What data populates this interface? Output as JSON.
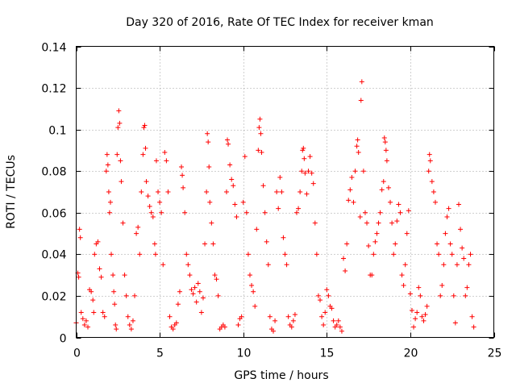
{
  "chart_data": {
    "type": "scatter",
    "title": "Day 320 of 2016, Rate Of TEC Index for receiver kman",
    "xlabel": "GPS time / hours",
    "ylabel": "ROTI / TECUs",
    "xlim": [
      0,
      25
    ],
    "ylim": [
      0,
      0.14
    ],
    "xticks": [
      0,
      5,
      10,
      15,
      20,
      25
    ],
    "yticks": [
      0,
      0.02,
      0.04,
      0.06,
      0.08,
      0.1,
      0.12,
      0.14
    ],
    "xtick_labels": [
      "0",
      "5",
      "10",
      "15",
      "20",
      "25"
    ],
    "ytick_labels": [
      "0",
      "0.02",
      "0.04",
      "0.06",
      "0.08",
      "0.1",
      "0.12",
      "0.14"
    ],
    "grid": true,
    "marker": "+",
    "color": "#ff0000",
    "series": [
      {
        "name": "ROTI",
        "points": [
          [
            0.0,
            0.007
          ],
          [
            0.1,
            0.031
          ],
          [
            0.15,
            0.029
          ],
          [
            0.2,
            0.052
          ],
          [
            0.25,
            0.048
          ],
          [
            0.3,
            0.012
          ],
          [
            0.4,
            0.009
          ],
          [
            0.5,
            0.006
          ],
          [
            0.6,
            0.008
          ],
          [
            0.7,
            0.005
          ],
          [
            0.8,
            0.023
          ],
          [
            0.9,
            0.022
          ],
          [
            1.0,
            0.018
          ],
          [
            1.05,
            0.012
          ],
          [
            1.1,
            0.04
          ],
          [
            1.2,
            0.045
          ],
          [
            1.3,
            0.046
          ],
          [
            1.4,
            0.033
          ],
          [
            1.5,
            0.029
          ],
          [
            1.6,
            0.012
          ],
          [
            1.7,
            0.01
          ],
          [
            1.8,
            0.08
          ],
          [
            1.85,
            0.088
          ],
          [
            1.9,
            0.083
          ],
          [
            1.95,
            0.07
          ],
          [
            2.0,
            0.06
          ],
          [
            2.05,
            0.065
          ],
          [
            2.1,
            0.04
          ],
          [
            2.2,
            0.03
          ],
          [
            2.25,
            0.022
          ],
          [
            2.3,
            0.016
          ],
          [
            2.35,
            0.006
          ],
          [
            2.4,
            0.004
          ],
          [
            2.45,
            0.088
          ],
          [
            2.5,
            0.101
          ],
          [
            2.55,
            0.109
          ],
          [
            2.6,
            0.103
          ],
          [
            2.65,
            0.085
          ],
          [
            2.7,
            0.075
          ],
          [
            2.8,
            0.055
          ],
          [
            2.9,
            0.03
          ],
          [
            3.0,
            0.02
          ],
          [
            3.1,
            0.01
          ],
          [
            3.2,
            0.006
          ],
          [
            3.3,
            0.004
          ],
          [
            3.4,
            0.008
          ],
          [
            3.5,
            0.02
          ],
          [
            3.6,
            0.05
          ],
          [
            3.7,
            0.053
          ],
          [
            3.8,
            0.04
          ],
          [
            3.9,
            0.07
          ],
          [
            4.0,
            0.088
          ],
          [
            4.05,
            0.101
          ],
          [
            4.1,
            0.102
          ],
          [
            4.15,
            0.091
          ],
          [
            4.2,
            0.075
          ],
          [
            4.3,
            0.068
          ],
          [
            4.4,
            0.063
          ],
          [
            4.5,
            0.06
          ],
          [
            4.6,
            0.058
          ],
          [
            4.7,
            0.045
          ],
          [
            4.75,
            0.04
          ],
          [
            4.8,
            0.085
          ],
          [
            4.9,
            0.07
          ],
          [
            5.0,
            0.065
          ],
          [
            5.1,
            0.06
          ],
          [
            5.2,
            0.035
          ],
          [
            5.3,
            0.089
          ],
          [
            5.4,
            0.085
          ],
          [
            5.5,
            0.07
          ],
          [
            5.6,
            0.01
          ],
          [
            5.7,
            0.005
          ],
          [
            5.8,
            0.004
          ],
          [
            5.9,
            0.006
          ],
          [
            6.0,
            0.007
          ],
          [
            6.1,
            0.016
          ],
          [
            6.2,
            0.022
          ],
          [
            6.3,
            0.082
          ],
          [
            6.35,
            0.078
          ],
          [
            6.4,
            0.072
          ],
          [
            6.5,
            0.06
          ],
          [
            6.6,
            0.04
          ],
          [
            6.7,
            0.035
          ],
          [
            6.8,
            0.03
          ],
          [
            6.9,
            0.023
          ],
          [
            7.0,
            0.021
          ],
          [
            7.1,
            0.024
          ],
          [
            7.2,
            0.017
          ],
          [
            7.3,
            0.026
          ],
          [
            7.4,
            0.022
          ],
          [
            7.5,
            0.012
          ],
          [
            7.6,
            0.019
          ],
          [
            7.7,
            0.045
          ],
          [
            7.8,
            0.07
          ],
          [
            7.85,
            0.098
          ],
          [
            7.9,
            0.094
          ],
          [
            7.95,
            0.082
          ],
          [
            8.0,
            0.065
          ],
          [
            8.1,
            0.055
          ],
          [
            8.2,
            0.045
          ],
          [
            8.3,
            0.03
          ],
          [
            8.4,
            0.028
          ],
          [
            8.5,
            0.02
          ],
          [
            8.6,
            0.004
          ],
          [
            8.7,
            0.005
          ],
          [
            8.8,
            0.006
          ],
          [
            8.9,
            0.005
          ],
          [
            9.0,
            0.07
          ],
          [
            9.05,
            0.095
          ],
          [
            9.1,
            0.093
          ],
          [
            9.2,
            0.083
          ],
          [
            9.3,
            0.076
          ],
          [
            9.4,
            0.073
          ],
          [
            9.5,
            0.064
          ],
          [
            9.6,
            0.058
          ],
          [
            9.7,
            0.006
          ],
          [
            9.8,
            0.009
          ],
          [
            9.9,
            0.01
          ],
          [
            10.0,
            0.065
          ],
          [
            10.1,
            0.087
          ],
          [
            10.2,
            0.06
          ],
          [
            10.3,
            0.04
          ],
          [
            10.4,
            0.03
          ],
          [
            10.5,
            0.025
          ],
          [
            10.6,
            0.022
          ],
          [
            10.7,
            0.015
          ],
          [
            10.8,
            0.052
          ],
          [
            10.9,
            0.09
          ],
          [
            10.95,
            0.101
          ],
          [
            11.0,
            0.105
          ],
          [
            11.05,
            0.098
          ],
          [
            11.1,
            0.089
          ],
          [
            11.2,
            0.073
          ],
          [
            11.3,
            0.06
          ],
          [
            11.4,
            0.046
          ],
          [
            11.5,
            0.035
          ],
          [
            11.6,
            0.01
          ],
          [
            11.7,
            0.004
          ],
          [
            11.8,
            0.003
          ],
          [
            11.9,
            0.008
          ],
          [
            12.0,
            0.07
          ],
          [
            12.1,
            0.062
          ],
          [
            12.2,
            0.077
          ],
          [
            12.3,
            0.07
          ],
          [
            12.4,
            0.048
          ],
          [
            12.5,
            0.04
          ],
          [
            12.6,
            0.035
          ],
          [
            12.7,
            0.01
          ],
          [
            12.8,
            0.006
          ],
          [
            12.9,
            0.005
          ],
          [
            13.0,
            0.008
          ],
          [
            13.1,
            0.011
          ],
          [
            13.2,
            0.06
          ],
          [
            13.3,
            0.062
          ],
          [
            13.4,
            0.07
          ],
          [
            13.5,
            0.08
          ],
          [
            13.55,
            0.09
          ],
          [
            13.6,
            0.091
          ],
          [
            13.65,
            0.086
          ],
          [
            13.7,
            0.079
          ],
          [
            13.8,
            0.069
          ],
          [
            13.9,
            0.08
          ],
          [
            14.0,
            0.087
          ],
          [
            14.1,
            0.079
          ],
          [
            14.2,
            0.074
          ],
          [
            14.3,
            0.055
          ],
          [
            14.4,
            0.04
          ],
          [
            14.5,
            0.02
          ],
          [
            14.6,
            0.018
          ],
          [
            14.7,
            0.01
          ],
          [
            14.8,
            0.006
          ],
          [
            14.9,
            0.012
          ],
          [
            15.0,
            0.023
          ],
          [
            15.1,
            0.02
          ],
          [
            15.2,
            0.015
          ],
          [
            15.3,
            0.014
          ],
          [
            15.4,
            0.008
          ],
          [
            15.5,
            0.005
          ],
          [
            15.6,
            0.006
          ],
          [
            15.7,
            0.008
          ],
          [
            15.8,
            0.005
          ],
          [
            15.9,
            0.003
          ],
          [
            16.0,
            0.038
          ],
          [
            16.1,
            0.032
          ],
          [
            16.2,
            0.045
          ],
          [
            16.3,
            0.066
          ],
          [
            16.4,
            0.071
          ],
          [
            16.5,
            0.077
          ],
          [
            16.6,
            0.065
          ],
          [
            16.7,
            0.08
          ],
          [
            16.8,
            0.092
          ],
          [
            16.85,
            0.095
          ],
          [
            16.9,
            0.089
          ],
          [
            17.0,
            0.058
          ],
          [
            17.05,
            0.114
          ],
          [
            17.1,
            0.123
          ],
          [
            17.2,
            0.08
          ],
          [
            17.3,
            0.06
          ],
          [
            17.4,
            0.055
          ],
          [
            17.5,
            0.044
          ],
          [
            17.6,
            0.03
          ],
          [
            17.7,
            0.03
          ],
          [
            17.8,
            0.04
          ],
          [
            17.9,
            0.046
          ],
          [
            18.0,
            0.05
          ],
          [
            18.1,
            0.055
          ],
          [
            18.2,
            0.06
          ],
          [
            18.3,
            0.071
          ],
          [
            18.4,
            0.075
          ],
          [
            18.45,
            0.096
          ],
          [
            18.5,
            0.094
          ],
          [
            18.55,
            0.09
          ],
          [
            18.6,
            0.085
          ],
          [
            18.7,
            0.072
          ],
          [
            18.8,
            0.065
          ],
          [
            18.9,
            0.055
          ],
          [
            19.0,
            0.04
          ],
          [
            19.1,
            0.045
          ],
          [
            19.2,
            0.056
          ],
          [
            19.3,
            0.064
          ],
          [
            19.4,
            0.06
          ],
          [
            19.5,
            0.03
          ],
          [
            19.6,
            0.025
          ],
          [
            19.7,
            0.035
          ],
          [
            19.8,
            0.05
          ],
          [
            19.9,
            0.061
          ],
          [
            20.0,
            0.021
          ],
          [
            20.1,
            0.013
          ],
          [
            20.2,
            0.005
          ],
          [
            20.3,
            0.009
          ],
          [
            20.4,
            0.012
          ],
          [
            20.5,
            0.024
          ],
          [
            20.6,
            0.02
          ],
          [
            20.7,
            0.01
          ],
          [
            20.8,
            0.008
          ],
          [
            20.9,
            0.011
          ],
          [
            21.0,
            0.015
          ],
          [
            21.1,
            0.08
          ],
          [
            21.15,
            0.088
          ],
          [
            21.2,
            0.085
          ],
          [
            21.3,
            0.075
          ],
          [
            21.4,
            0.07
          ],
          [
            21.5,
            0.065
          ],
          [
            21.6,
            0.045
          ],
          [
            21.7,
            0.04
          ],
          [
            21.8,
            0.02
          ],
          [
            21.9,
            0.025
          ],
          [
            22.0,
            0.035
          ],
          [
            22.1,
            0.05
          ],
          [
            22.2,
            0.058
          ],
          [
            22.3,
            0.062
          ],
          [
            22.4,
            0.045
          ],
          [
            22.5,
            0.04
          ],
          [
            22.6,
            0.02
          ],
          [
            22.7,
            0.007
          ],
          [
            22.8,
            0.035
          ],
          [
            22.9,
            0.064
          ],
          [
            23.0,
            0.052
          ],
          [
            23.1,
            0.043
          ],
          [
            23.2,
            0.038
          ],
          [
            23.3,
            0.02
          ],
          [
            23.4,
            0.024
          ],
          [
            23.5,
            0.035
          ],
          [
            23.6,
            0.04
          ],
          [
            23.7,
            0.01
          ],
          [
            23.8,
            0.005
          ]
        ]
      }
    ]
  }
}
